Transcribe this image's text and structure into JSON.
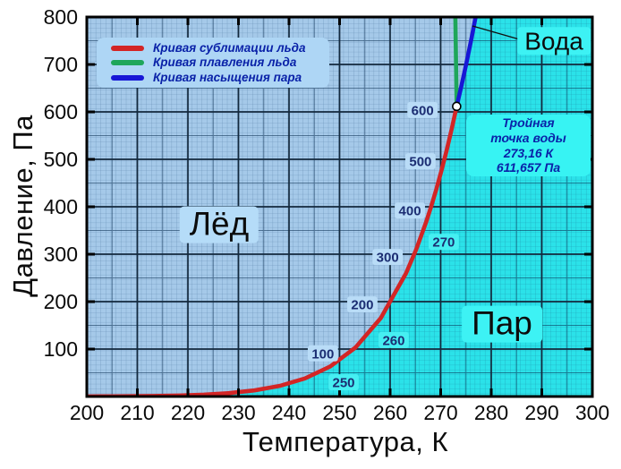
{
  "figure": {
    "xlabel": "Температура, К",
    "ylabel": "Давление, Па",
    "region_labels": {
      "ice": "Лёд",
      "vapor": "Пар",
      "water": "Вода"
    },
    "legend": {
      "items": [
        {
          "label": "Кривая сублимации льда",
          "color": "#d32525"
        },
        {
          "label": "Кривая плавления льда",
          "color": "#1ea65a"
        },
        {
          "label": "Кривая насыщения пара",
          "color": "#1717d6"
        }
      ]
    },
    "triple_point_note": {
      "lines": [
        "Тройная",
        "точка воды",
        "273,16 К",
        "611,657 Па"
      ]
    }
  },
  "chart_data": {
    "type": "line",
    "title": "",
    "xlabel": "Температура, К",
    "ylabel": "Давление, Па",
    "xlim": [
      200,
      300
    ],
    "ylim": [
      0,
      800
    ],
    "x_ticks": [
      200,
      210,
      220,
      230,
      240,
      250,
      260,
      270,
      280,
      290,
      300
    ],
    "y_ticks": [
      100,
      200,
      300,
      400,
      500,
      600,
      700,
      800
    ],
    "grid": "minor 1 K / 10 Pa, semi-major 5 K / 50 Pa, major 10 K / 100 Pa",
    "legend_position": "upper-left",
    "region_colors": {
      "ice_water": "#a5c9e9",
      "vapor": "#2be2e9"
    },
    "series": [
      {
        "name": "Кривая сублимации льда",
        "color": "#d32525",
        "points": [
          [
            200,
            0.16
          ],
          [
            203.15,
            0.26
          ],
          [
            208.15,
            0.54
          ],
          [
            213.15,
            1.08
          ],
          [
            218.15,
            2.11
          ],
          [
            223.15,
            3.94
          ],
          [
            228.15,
            7.2
          ],
          [
            233.15,
            12.84
          ],
          [
            238.15,
            22.35
          ],
          [
            243.15,
            38.02
          ],
          [
            248.15,
            63.29
          ],
          [
            253.15,
            103.26
          ],
          [
            258.15,
            165.3
          ],
          [
            263.15,
            259.9
          ],
          [
            265.15,
            309.9
          ],
          [
            267.15,
            368.7
          ],
          [
            268.15,
            401.8
          ],
          [
            269.15,
            437.5
          ],
          [
            270.15,
            476.1
          ],
          [
            271.15,
            517.7
          ],
          [
            272.15,
            562.7
          ],
          [
            273.16,
            611.657
          ]
        ]
      },
      {
        "name": "Кривая плавления льда",
        "color": "#1ea65a",
        "points": [
          [
            273.16,
            611.657
          ],
          [
            272.9,
            800
          ]
        ]
      },
      {
        "name": "Кривая насыщения пара",
        "color": "#1717d6",
        "points": [
          [
            273.16,
            611.657
          ],
          [
            274.15,
            657.2
          ],
          [
            275.15,
            706.0
          ],
          [
            276.15,
            758.1
          ],
          [
            277.15,
            813.6
          ]
        ]
      }
    ],
    "triple_point": {
      "T": 273.16,
      "P": 611.657
    },
    "inline_labels": [
      {
        "text": "600",
        "T": 266.4,
        "P": 604,
        "region": "ice"
      },
      {
        "text": "500",
        "T": 266.0,
        "P": 496,
        "region": "ice"
      },
      {
        "text": "400",
        "T": 263.9,
        "P": 392,
        "region": "ice"
      },
      {
        "text": "300",
        "T": 259.5,
        "P": 294,
        "region": "ice"
      },
      {
        "text": "200",
        "T": 254.5,
        "P": 194,
        "region": "ice"
      },
      {
        "text": "100",
        "T": 246.7,
        "P": 91,
        "region": "ice"
      },
      {
        "text": "270",
        "T": 270.6,
        "P": 326,
        "region": "vapor"
      },
      {
        "text": "260",
        "T": 260.7,
        "P": 119,
        "region": "vapor"
      },
      {
        "text": "250",
        "T": 250.8,
        "P": 30,
        "region": "vapor"
      }
    ]
  }
}
